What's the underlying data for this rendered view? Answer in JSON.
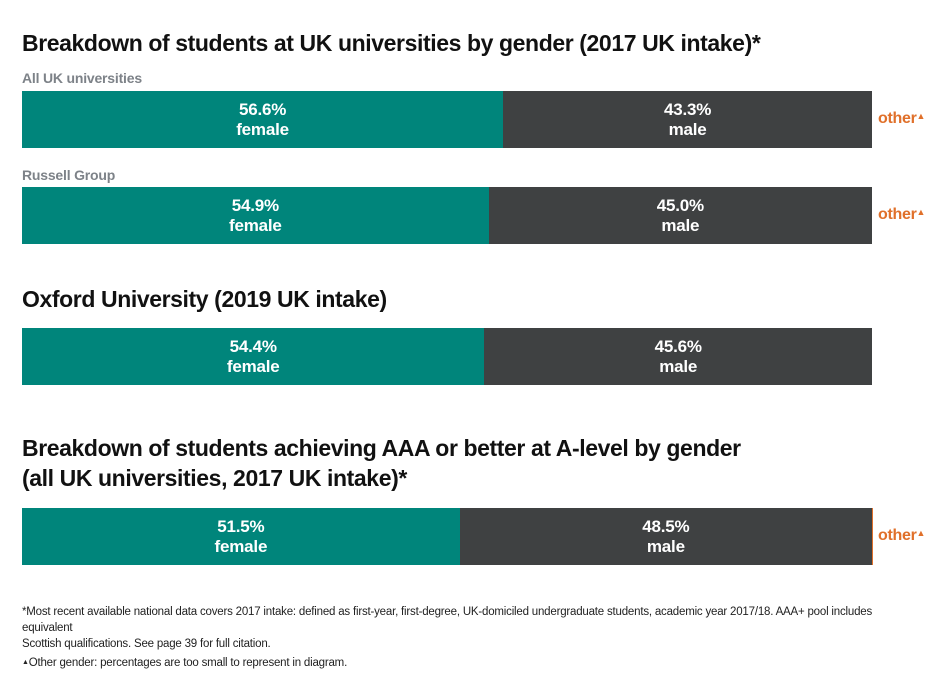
{
  "chart_data": {
    "type": "bar",
    "orientation": "horizontal-stacked",
    "sections": [
      {
        "title": "Breakdown of students at UK universities by gender (2017 UK intake)*",
        "rows": [
          {
            "label": "All UK universities",
            "female": 56.6,
            "male": 43.3,
            "female_label": "56.6%",
            "male_label": "43.3%",
            "other_note": "other"
          },
          {
            "label": "Russell Group",
            "female": 54.9,
            "male": 45.0,
            "female_label": "54.9%",
            "male_label": "45.0%",
            "other_note": "other"
          }
        ]
      },
      {
        "title": "Oxford University (2019 UK intake)",
        "rows": [
          {
            "label": "",
            "female": 54.4,
            "male": 45.6,
            "female_label": "54.4%",
            "male_label": "45.6%",
            "other_note": ""
          }
        ]
      },
      {
        "title_line1": "Breakdown of students achieving AAA or better at A-level by gender",
        "title_line2": "(all UK universities, 2017 UK intake)*",
        "rows": [
          {
            "label": "",
            "female": 51.5,
            "male": 48.5,
            "female_label": "51.5%",
            "male_label": "48.5%",
            "other_note": "other"
          }
        ]
      }
    ],
    "series": [
      {
        "name": "female",
        "color": "#00857b"
      },
      {
        "name": "male",
        "color": "#3f4142"
      }
    ],
    "other_color": "#e0702a",
    "triangle_marker": "▲"
  },
  "footnotes": {
    "asterisk_line1": "*Most recent available national data covers 2017 intake: defined as first-year, first-degree, UK-domiciled undergraduate students, academic year 2017/18.  AAA+ pool includes equivalent",
    "asterisk_line2": "Scottish qualifications. See page 39 for full citation.",
    "other_note": "Other gender: percentages are too small to represent in diagram."
  }
}
